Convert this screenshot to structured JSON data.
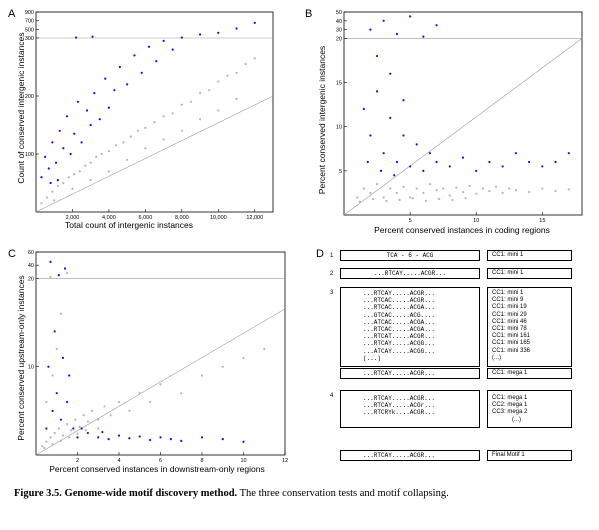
{
  "panels": {
    "A": {
      "letter": "A",
      "xlabel": "Total count of intergenic instances",
      "ylabel": "Count of conserved intergenic instances"
    },
    "B": {
      "letter": "B",
      "xlabel": "Percent conserved instances in coding regions",
      "ylabel": "Percent conserved intergenic instances"
    },
    "C": {
      "letter": "C",
      "xlabel": "Percent conserved instances in downstream-only regions",
      "ylabel": "Percent conserved upstream-only instances"
    },
    "D": {
      "letter": "D"
    }
  },
  "chart_data": [
    {
      "type": "scatter",
      "panel": "A",
      "xlabel": "Total count of intergenic instances",
      "ylabel": "Count of conserved intergenic instances",
      "xlim": [
        0,
        13000
      ],
      "ylim": [
        0,
        900
      ],
      "xticks": [
        "2,000",
        "4,000",
        "6,000",
        "8,000",
        "10,000",
        "12,000"
      ],
      "yticks": [
        "100",
        "200",
        "300",
        "500",
        "700",
        "900"
      ],
      "threshold_y": 300,
      "grid": false,
      "series": [
        {
          "color": "#1010d8",
          "points": [
            [
              300,
              60
            ],
            [
              500,
              95
            ],
            [
              700,
              75
            ],
            [
              900,
              120
            ],
            [
              1100,
              85
            ],
            [
              1300,
              140
            ],
            [
              1500,
              110
            ],
            [
              1700,
              165
            ],
            [
              1900,
              100
            ],
            [
              2100,
              135
            ],
            [
              2300,
              190
            ],
            [
              2500,
              120
            ],
            [
              2800,
              175
            ],
            [
              3000,
              150
            ],
            [
              3200,
              205
            ],
            [
              3500,
              160
            ],
            [
              3800,
              230
            ],
            [
              4000,
              180
            ],
            [
              4300,
              210
            ],
            [
              4600,
              250
            ],
            [
              5000,
              220
            ],
            [
              5400,
              270
            ],
            [
              5800,
              240
            ],
            [
              6200,
              285
            ],
            [
              6600,
              260
            ],
            [
              7000,
              295
            ],
            [
              7500,
              280
            ],
            [
              8000,
              310
            ],
            [
              9000,
              380
            ],
            [
              10000,
              420
            ],
            [
              11000,
              520
            ],
            [
              12000,
              650
            ],
            [
              2200,
              310
            ],
            [
              3100,
              330
            ],
            [
              1200,
              55
            ],
            [
              800,
              50
            ]
          ]
        },
        {
          "color": "#b4b4b4",
          "points": [
            [
              300,
              15
            ],
            [
              600,
              25
            ],
            [
              900,
              35
            ],
            [
              1200,
              45
            ],
            [
              1500,
              50
            ],
            [
              1800,
              60
            ],
            [
              2100,
              65
            ],
            [
              2400,
              70
            ],
            [
              2700,
              80
            ],
            [
              3000,
              85
            ],
            [
              3300,
              95
            ],
            [
              3600,
              100
            ],
            [
              4000,
              105
            ],
            [
              4400,
              115
            ],
            [
              4800,
              120
            ],
            [
              5200,
              130
            ],
            [
              5600,
              140
            ],
            [
              6000,
              145
            ],
            [
              6500,
              155
            ],
            [
              7000,
              165
            ],
            [
              7500,
              170
            ],
            [
              8000,
              185
            ],
            [
              8500,
              190
            ],
            [
              9000,
              205
            ],
            [
              9500,
              210
            ],
            [
              10000,
              225
            ],
            [
              10500,
              235
            ],
            [
              11000,
              240
            ],
            [
              11500,
              255
            ],
            [
              12000,
              265
            ],
            [
              1000,
              20
            ],
            [
              2000,
              40
            ],
            [
              3000,
              55
            ],
            [
              4000,
              70
            ],
            [
              5000,
              90
            ],
            [
              6000,
              110
            ],
            [
              7000,
              125
            ],
            [
              8000,
              140
            ],
            [
              9000,
              160
            ],
            [
              10000,
              175
            ],
            [
              11000,
              195
            ]
          ]
        }
      ],
      "diagonal": true
    },
    {
      "type": "scatter",
      "panel": "B",
      "xlabel": "Percent conserved instances in coding regions",
      "ylabel": "Percent conserved intergenic instances",
      "xlim": [
        0,
        18
      ],
      "ylim": [
        0,
        50
      ],
      "xticks": [
        "5",
        "10",
        "15"
      ],
      "yticks": [
        "5",
        "10",
        "15",
        "20",
        "30",
        "40",
        "50"
      ],
      "threshold_y": 20,
      "grid": false,
      "series": [
        {
          "color": "#1010d8",
          "points": [
            [
              1.5,
              12
            ],
            [
              2,
              9
            ],
            [
              2.5,
              14
            ],
            [
              3,
              7
            ],
            [
              3.5,
              11
            ],
            [
              4,
              6
            ],
            [
              4.5,
              9
            ],
            [
              5,
              5.5
            ],
            [
              5.5,
              8
            ],
            [
              6,
              5
            ],
            [
              6.5,
              7
            ],
            [
              7,
              6
            ],
            [
              8,
              5.5
            ],
            [
              9,
              6.5
            ],
            [
              10,
              5
            ],
            [
              11,
              6
            ],
            [
              12,
              5.5
            ],
            [
              13,
              7
            ],
            [
              14,
              6
            ],
            [
              15,
              5.5
            ],
            [
              16,
              6
            ],
            [
              17,
              7
            ],
            [
              2,
              30
            ],
            [
              3,
              40
            ],
            [
              4,
              25
            ],
            [
              5,
              45
            ],
            [
              6,
              22
            ],
            [
              7,
              35
            ],
            [
              2.5,
              18
            ],
            [
              3.5,
              16
            ],
            [
              4.5,
              13
            ],
            [
              1.8,
              6
            ],
            [
              2.8,
              5
            ],
            [
              3.8,
              4.5
            ]
          ]
        },
        {
          "color": "#b4b4b4",
          "points": [
            [
              1,
              2
            ],
            [
              1.5,
              3
            ],
            [
              2,
              2.5
            ],
            [
              2.5,
              3.5
            ],
            [
              3,
              2
            ],
            [
              3.5,
              3
            ],
            [
              4,
              2.5
            ],
            [
              4.5,
              3.2
            ],
            [
              5,
              2
            ],
            [
              5.5,
              3
            ],
            [
              6,
              2.5
            ],
            [
              6.5,
              3.5
            ],
            [
              7,
              2.8
            ],
            [
              7.5,
              3
            ],
            [
              8,
              2.2
            ],
            [
              8.5,
              3.1
            ],
            [
              9,
              2.6
            ],
            [
              9.5,
              3.3
            ],
            [
              10,
              2.4
            ],
            [
              10.5,
              3
            ],
            [
              11,
              2.7
            ],
            [
              11.5,
              3.2
            ],
            [
              12,
              2.5
            ],
            [
              12.5,
              3
            ],
            [
              13,
              2.8
            ],
            [
              14,
              2.6
            ],
            [
              15,
              3
            ],
            [
              16,
              2.7
            ],
            [
              17,
              2.9
            ],
            [
              1.2,
              1.5
            ],
            [
              2.2,
              1.8
            ],
            [
              3.2,
              1.6
            ],
            [
              4.2,
              1.7
            ],
            [
              5.2,
              1.9
            ],
            [
              6.2,
              1.6
            ],
            [
              7.2,
              1.8
            ],
            [
              8.2,
              1.7
            ],
            [
              9.2,
              1.9
            ]
          ]
        }
      ],
      "diagonal": true
    },
    {
      "type": "scatter",
      "panel": "C",
      "xlabel": "Percent conserved instances in downstream-only regions",
      "ylabel": "Percent conserved upstream-only instances",
      "xlim": [
        0,
        12
      ],
      "ylim": [
        0,
        60
      ],
      "xticks": [
        "2",
        "4",
        "6",
        "8",
        "10",
        "12"
      ],
      "yticks": [
        "10",
        "20",
        "40",
        "60"
      ],
      "threshold_y": 20,
      "grid": false,
      "series": [
        {
          "color": "#1010d8",
          "points": [
            [
              0.5,
              3
            ],
            [
              0.8,
              5
            ],
            [
              1,
              7
            ],
            [
              1.2,
              4
            ],
            [
              1.5,
              6
            ],
            [
              1.8,
              3
            ],
            [
              2,
              2
            ],
            [
              2.5,
              2.5
            ],
            [
              3,
              2
            ],
            [
              3.5,
              1.8
            ],
            [
              4,
              2.2
            ],
            [
              4.5,
              1.9
            ],
            [
              5,
              2.1
            ],
            [
              5.5,
              1.7
            ],
            [
              6,
              2
            ],
            [
              6.5,
              1.8
            ],
            [
              7,
              1.6
            ],
            [
              8,
              2
            ],
            [
              9,
              1.8
            ],
            [
              10,
              1.5
            ],
            [
              0.6,
              10
            ],
            [
              0.9,
              14
            ],
            [
              1.1,
              25
            ],
            [
              1.4,
              35
            ],
            [
              0.7,
              45
            ],
            [
              1.6,
              9
            ],
            [
              1.3,
              11
            ],
            [
              2.2,
              3
            ],
            [
              3.2,
              2.6
            ]
          ]
        },
        {
          "color": "#b4b4b4",
          "points": [
            [
              0.3,
              1
            ],
            [
              0.5,
              1.5
            ],
            [
              0.7,
              2
            ],
            [
              0.9,
              2.5
            ],
            [
              1.1,
              3
            ],
            [
              1.3,
              2.2
            ],
            [
              1.5,
              3.5
            ],
            [
              1.7,
              2.8
            ],
            [
              1.9,
              4
            ],
            [
              2.1,
              3.2
            ],
            [
              2.3,
              4.5
            ],
            [
              2.5,
              3.8
            ],
            [
              2.7,
              5
            ],
            [
              3,
              4
            ],
            [
              3.3,
              5.5
            ],
            [
              3.6,
              4.5
            ],
            [
              4,
              6
            ],
            [
              4.5,
              5
            ],
            [
              5,
              7
            ],
            [
              5.5,
              6
            ],
            [
              6,
              8
            ],
            [
              7,
              7
            ],
            [
              8,
              9
            ],
            [
              9,
              10
            ],
            [
              10,
              11
            ],
            [
              11,
              12
            ],
            [
              0.4,
              0.8
            ],
            [
              0.8,
              1.2
            ],
            [
              1.2,
              1.6
            ],
            [
              1.6,
              2
            ],
            [
              2,
              2.4
            ],
            [
              2.4,
              2.8
            ],
            [
              3,
              3
            ],
            [
              0.5,
              6
            ],
            [
              0.8,
              9
            ],
            [
              1,
              12
            ],
            [
              1.2,
              16
            ],
            [
              0.7,
              22
            ],
            [
              1.5,
              28
            ]
          ]
        }
      ],
      "diagonal": true
    }
  ],
  "panel_d": {
    "groups": [
      {
        "number": "1",
        "rows": [
          {
            "motif": "TCA - 6 - ACG",
            "label": "CC1: mini 1"
          }
        ]
      },
      {
        "number": "2",
        "rows": [
          {
            "motif": "...RTCAY.....ACGR...",
            "label": "CC1: mini 1"
          }
        ]
      },
      {
        "number": "3",
        "motifs": [
          "...RTCAY.....ACGR...",
          "...RTCAC.....ACGR...",
          "...RTCAC.....ACGA...",
          "...GTCAC.....ACG....",
          "...ATCAC.....ACGA...",
          "...RTCAC.....ACGA...",
          "...RTCAT.....ACGR...",
          "...RTCAY.....ACGG...",
          "...ATCAY.....ACGG...",
          "(...)"
        ],
        "labels": [
          "CC1: mini 1",
          "CC1: mini 9",
          "CC1: mini 19",
          "CC1: mini 29",
          "CC1: mini 46",
          "CC1: mini 78",
          "CC1: mini 161",
          "CC1: mini 165",
          "CC1: mini 336",
          "(...)"
        ],
        "result_motif": "...RTCAY.....ACGR...",
        "result_label": "CC1: mega 1"
      },
      {
        "number": "4",
        "motifs": [
          "...RTCAY.....ACGR...",
          "...RTCAY.....ACGr...",
          "...RTCRYk....ACGR..."
        ],
        "labels": [
          "CC1: mega 1",
          "CC2: mega 1",
          "CC3: mega 2"
        ],
        "labels_extra": "(...)",
        "result_motif": "...RTCAY.....ACGR...",
        "result_label": "Final Motif 1"
      }
    ]
  },
  "caption": {
    "figure": "Figure 3.5. Genome-wide motif discovery method.",
    "text": " The three conservation tests and motif collapsing."
  }
}
